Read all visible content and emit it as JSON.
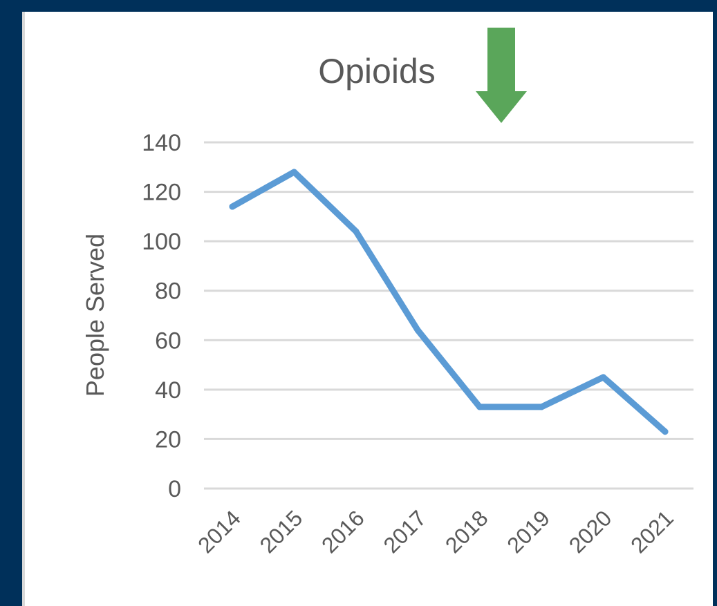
{
  "chart_data": {
    "type": "line",
    "title": "Opioids",
    "xlabel": "",
    "ylabel": "People Served",
    "categories": [
      "2014",
      "2015",
      "2016",
      "2017",
      "2018",
      "2019",
      "2020",
      "2021"
    ],
    "series": [
      {
        "values": [
          114,
          128,
          104,
          64,
          33,
          33,
          45,
          23
        ],
        "color": "#5b9bd5"
      }
    ],
    "ylim": [
      0,
      140
    ],
    "yticks": [
      "0",
      "20",
      "40",
      "60",
      "80",
      "100",
      "120",
      "140"
    ],
    "grid": true,
    "legend": "none"
  },
  "annotation": {
    "icon": "down-arrow-icon",
    "color": "#5aa65a"
  }
}
